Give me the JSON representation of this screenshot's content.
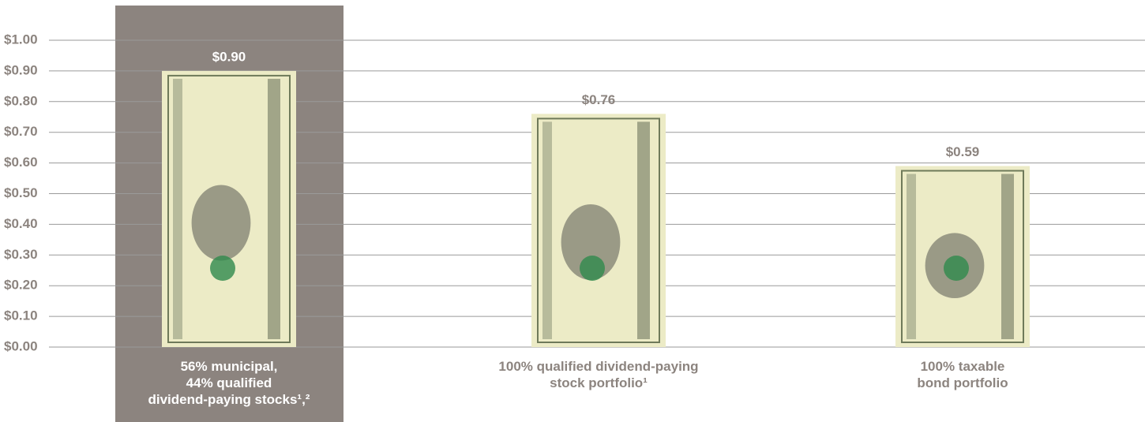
{
  "chart_data": {
    "type": "bar",
    "categories": [
      "56% municipal,\n44% qualified\ndividend-paying stocks¹,²",
      "100% qualified dividend-paying\nstock portfolio¹",
      "100% taxable\nbond portfolio"
    ],
    "values": [
      0.9,
      0.76,
      0.59
    ],
    "value_labels": [
      "$0.90",
      "$0.76",
      "$0.59"
    ],
    "color": "#ecebc6",
    "highlight": 0,
    "highlight_color": "#8c847f",
    "text_color": "#8c847f",
    "ylim": [
      0,
      1
    ],
    "yticks": [
      {
        "value": 0,
        "label": "$0.00"
      },
      {
        "value": 0.1,
        "label": "$0.10"
      },
      {
        "value": 0.2,
        "label": "$0.20"
      },
      {
        "value": 0.3,
        "label": "$0.30"
      },
      {
        "value": 0.4,
        "label": "$0.40"
      },
      {
        "value": 0.5,
        "label": "$0.50"
      },
      {
        "value": 0.6,
        "label": "$0.60"
      },
      {
        "value": 0.7,
        "label": "$0.70"
      },
      {
        "value": 0.8,
        "label": "$0.80"
      },
      {
        "value": 0.9,
        "label": "$0.90"
      },
      {
        "value": 1,
        "label": "$1.00"
      }
    ],
    "grid": true
  }
}
